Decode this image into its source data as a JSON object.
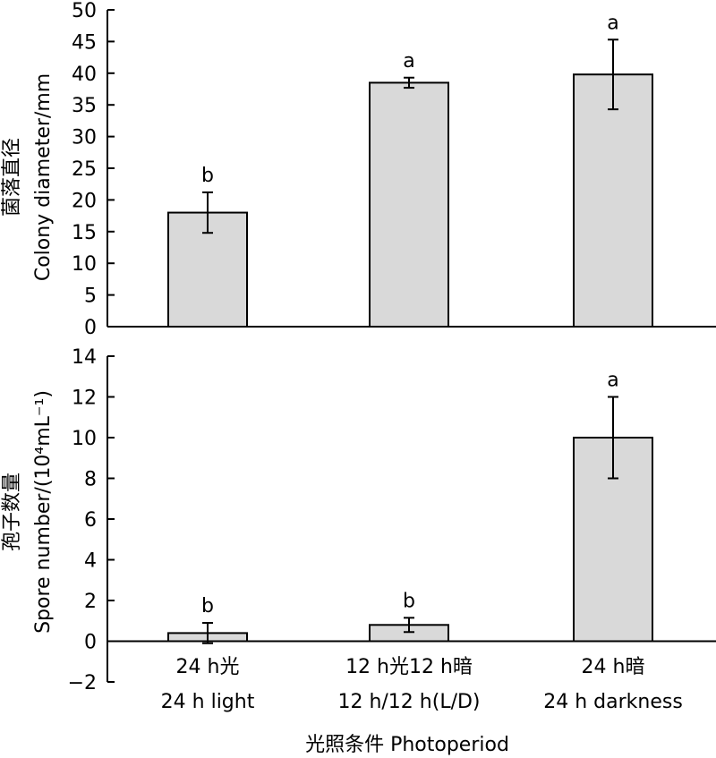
{
  "chart_data": [
    {
      "type": "bar",
      "ylabel": "Colony diameter/mm",
      "ylabel_cn": "菌落直径",
      "ylim": [
        0,
        50
      ],
      "yticks": [
        0,
        5,
        10,
        15,
        20,
        25,
        30,
        35,
        40,
        45,
        50
      ],
      "ytick_labels": [
        "0",
        "5",
        "10",
        "15",
        "20",
        "25",
        "30",
        "35",
        "40",
        "45",
        "50"
      ],
      "grid": false,
      "categories": [
        "24 h光",
        "12 h光12 h暗",
        "24 h暗"
      ],
      "values": [
        18,
        38.5,
        39.8
      ],
      "error": [
        3.2,
        0.8,
        5.5
      ],
      "letters": [
        "b",
        "a",
        "a"
      ],
      "bar_color": "#d9d9d9"
    },
    {
      "type": "bar",
      "ylabel": "Spore number/(10⁴mL⁻¹)",
      "ylabel_cn": "孢子数量",
      "ylim": [
        -2,
        14
      ],
      "yticks": [
        -2,
        0,
        2,
        4,
        6,
        8,
        10,
        12,
        14
      ],
      "ytick_labels": [
        "−2",
        "0",
        "2",
        "4",
        "6",
        "8",
        "10",
        "12",
        "14"
      ],
      "grid": false,
      "categories_line1": [
        "24 h光",
        "12 h光12 h暗",
        "24 h暗"
      ],
      "categories_line2": [
        "24 h light",
        "12 h/12 h(L/D)",
        "24 h darkness"
      ],
      "values": [
        0.4,
        0.8,
        10
      ],
      "error": [
        0.5,
        0.35,
        2
      ],
      "letters": [
        "b",
        "b",
        "a"
      ],
      "bar_color": "#d9d9d9",
      "xlabel": "光照条件 Photoperiod"
    }
  ]
}
